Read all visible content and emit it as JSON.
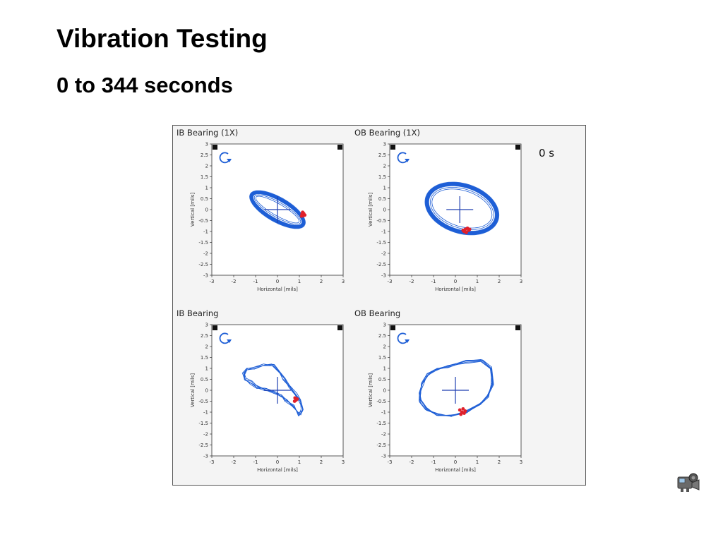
{
  "slide": {
    "title": "Vibration Testing",
    "subtitle": "0 to 344 seconds"
  },
  "time_indicator": "0 s",
  "icons": {
    "rotation": "clockwise-rotation-icon",
    "probe_marker": "probe-marker-icon",
    "video": "video-camera-icon"
  },
  "colors": {
    "orbit": "#1f5fd6",
    "keyphasor": "#e0202a",
    "crosshair": "#1f3fb0",
    "axis": "#333333",
    "panel_background": "#f4f4f4"
  },
  "chart_data": [
    {
      "type": "scatter",
      "title": "IB Bearing (1X)",
      "xlabel": "Horizontal [mils]",
      "ylabel": "Vertical [mils]",
      "xlim": [
        -3,
        3
      ],
      "ylim": [
        -3,
        3
      ],
      "x_ticks": [
        "-3",
        "-2",
        "-1",
        "0",
        "1",
        "2",
        "3"
      ],
      "y_ticks": [
        "3",
        "2.5",
        "2",
        "1.5",
        "1",
        "0.5",
        "0",
        "-0.5",
        "-1",
        "-1.5",
        "-2",
        "-2.5",
        "-3"
      ],
      "orbit": {
        "shape": "ellipse",
        "center": [
          0,
          0
        ],
        "rx": 1.35,
        "ry": 0.48,
        "angle_deg": -30,
        "band_width": 0.12
      },
      "crosshair_center": [
        0,
        0
      ],
      "keyphasor_points": [
        [
          1.12,
          -0.2
        ],
        [
          1.18,
          -0.28
        ],
        [
          1.2,
          -0.18
        ],
        [
          1.1,
          -0.3
        ],
        [
          1.25,
          -0.25
        ],
        [
          1.15,
          -0.12
        ]
      ]
    },
    {
      "type": "scatter",
      "title": "OB Bearing (1X)",
      "xlabel": "Horizontal [mils]",
      "ylabel": "Vertical [mils]",
      "xlim": [
        -3,
        3
      ],
      "ylim": [
        -3,
        3
      ],
      "x_ticks": [
        "-3",
        "-2",
        "-1",
        "0",
        "1",
        "2",
        "3"
      ],
      "y_ticks": [
        "3",
        "2.5",
        "2",
        "1.5",
        "1",
        "0.5",
        "0",
        "-0.5",
        "-1",
        "-1.5",
        "-2",
        "-2.5",
        "-3"
      ],
      "orbit": {
        "shape": "ellipse",
        "center": [
          0.3,
          0.05
        ],
        "rx": 1.65,
        "ry": 1.05,
        "angle_deg": -18,
        "band_width": 0.13
      },
      "crosshair_center": [
        0.2,
        0
      ],
      "keyphasor_points": [
        [
          0.45,
          -0.9
        ],
        [
          0.55,
          -0.85
        ],
        [
          0.4,
          -1.0
        ],
        [
          0.6,
          -0.95
        ],
        [
          0.5,
          -1.05
        ],
        [
          0.35,
          -0.95
        ],
        [
          0.65,
          -0.9
        ]
      ]
    },
    {
      "type": "scatter",
      "title": "IB Bearing",
      "xlabel": "Horizontal [mils]",
      "ylabel": "Vertical [mils]",
      "xlim": [
        -3,
        3
      ],
      "ylim": [
        -3,
        3
      ],
      "x_ticks": [
        "-3",
        "-2",
        "-1",
        "0",
        "1",
        "2",
        "3"
      ],
      "y_ticks": [
        "3",
        "2.5",
        "2",
        "1.5",
        "1",
        "0.5",
        "0",
        "-0.5",
        "-1",
        "-1.5",
        "-2",
        "-2.5",
        "-3"
      ],
      "orbit": {
        "shape": "polyline",
        "passes": 5,
        "points": [
          [
            -1.4,
            1.0
          ],
          [
            -1.0,
            1.0
          ],
          [
            -0.6,
            1.15
          ],
          [
            -0.2,
            1.15
          ],
          [
            0.1,
            0.8
          ],
          [
            0.3,
            0.55
          ],
          [
            0.55,
            0.2
          ],
          [
            0.85,
            -0.2
          ],
          [
            1.05,
            -0.5
          ],
          [
            1.15,
            -0.9
          ],
          [
            1.0,
            -1.1
          ],
          [
            0.7,
            -0.75
          ],
          [
            0.4,
            -0.45
          ],
          [
            0.15,
            -0.25
          ],
          [
            -0.15,
            -0.1
          ],
          [
            -0.55,
            0.05
          ],
          [
            -0.9,
            0.15
          ],
          [
            -1.2,
            0.35
          ],
          [
            -1.5,
            0.5
          ],
          [
            -1.55,
            0.75
          ]
        ]
      },
      "crosshair_center": [
        0,
        0
      ],
      "keyphasor_points": [
        [
          0.8,
          -0.35
        ],
        [
          0.85,
          -0.45
        ],
        [
          0.78,
          -0.5
        ],
        [
          0.9,
          -0.4
        ]
      ]
    },
    {
      "type": "scatter",
      "title": "OB Bearing",
      "xlabel": "Horizontal [mils]",
      "ylabel": "Vertical [mils]",
      "xlim": [
        -3,
        3
      ],
      "ylim": [
        -3,
        3
      ],
      "x_ticks": [
        "-3",
        "-2",
        "-1",
        "0",
        "1",
        "2",
        "3"
      ],
      "y_ticks": [
        "3",
        "2.5",
        "2",
        "1.5",
        "1",
        "0.5",
        "0",
        "-0.5",
        "-1",
        "-1.5",
        "-2",
        "-2.5",
        "-3"
      ],
      "orbit": {
        "shape": "polyline",
        "passes": 6,
        "points": [
          [
            -1.6,
            -0.1
          ],
          [
            -1.5,
            0.35
          ],
          [
            -1.3,
            0.7
          ],
          [
            -0.9,
            0.95
          ],
          [
            -0.3,
            1.1
          ],
          [
            0.5,
            1.3
          ],
          [
            1.2,
            1.35
          ],
          [
            1.65,
            1.0
          ],
          [
            1.7,
            0.3
          ],
          [
            1.5,
            -0.25
          ],
          [
            1.1,
            -0.65
          ],
          [
            0.5,
            -1.0
          ],
          [
            -0.2,
            -1.15
          ],
          [
            -0.8,
            -1.1
          ],
          [
            -1.3,
            -0.85
          ],
          [
            -1.6,
            -0.5
          ]
        ]
      },
      "crosshair_center": [
        0,
        0
      ],
      "keyphasor_points": [
        [
          0.2,
          -0.9
        ],
        [
          0.3,
          -1.0
        ],
        [
          0.35,
          -0.85
        ],
        [
          0.45,
          -0.95
        ],
        [
          0.25,
          -1.1
        ],
        [
          0.4,
          -1.05
        ]
      ]
    }
  ]
}
